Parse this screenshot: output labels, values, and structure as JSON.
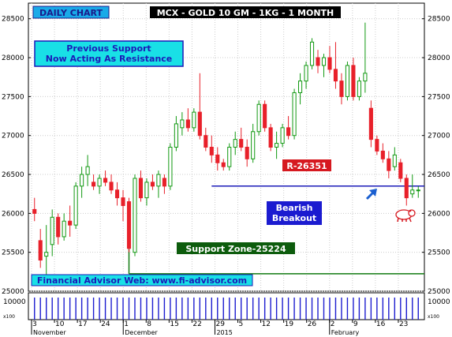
{
  "chart_data": {
    "type": "candlestick",
    "title": "MCX - GOLD 10 GM - 1KG - 1 MONTH",
    "timeframe_label": "DAILY CHART",
    "ylim": [
      25000,
      28700
    ],
    "y_ticks": [
      25000,
      25500,
      26000,
      26500,
      27000,
      27500,
      28000,
      28500
    ],
    "x_tick_labels": [
      "3",
      "10",
      "17",
      "24",
      "1",
      "8",
      "15",
      "22",
      "29",
      "5",
      "12",
      "19",
      "26",
      "2",
      "9",
      "16",
      "23"
    ],
    "month_labels": [
      {
        "label": "November",
        "after_tick": 0
      },
      {
        "label": "December",
        "after_tick": 4
      },
      {
        "label": "2015",
        "after_tick": 8
      },
      {
        "label": "February",
        "after_tick": 13
      }
    ],
    "candles": [
      {
        "o": 26050,
        "h": 26200,
        "l": 25900,
        "c": 26000
      },
      {
        "o": 25650,
        "h": 25800,
        "l": 25300,
        "c": 25400
      },
      {
        "o": 25450,
        "h": 25850,
        "l": 25150,
        "c": 25500
      },
      {
        "o": 25600,
        "h": 26050,
        "l": 25450,
        "c": 25950
      },
      {
        "o": 25950,
        "h": 26000,
        "l": 25600,
        "c": 25700
      },
      {
        "o": 25700,
        "h": 26000,
        "l": 25650,
        "c": 25900
      },
      {
        "o": 25900,
        "h": 26100,
        "l": 25700,
        "c": 25850
      },
      {
        "o": 25850,
        "h": 26400,
        "l": 25800,
        "c": 26350
      },
      {
        "o": 26350,
        "h": 26600,
        "l": 26200,
        "c": 26500
      },
      {
        "o": 26500,
        "h": 26750,
        "l": 26350,
        "c": 26600
      },
      {
        "o": 26400,
        "h": 26500,
        "l": 26300,
        "c": 26350
      },
      {
        "o": 26350,
        "h": 26500,
        "l": 26250,
        "c": 26450
      },
      {
        "o": 26450,
        "h": 26550,
        "l": 26350,
        "c": 26400
      },
      {
        "o": 26400,
        "h": 26500,
        "l": 26250,
        "c": 26300
      },
      {
        "o": 26300,
        "h": 26400,
        "l": 26100,
        "c": 26200
      },
      {
        "o": 26200,
        "h": 26300,
        "l": 25900,
        "c": 26100
      },
      {
        "o": 26150,
        "h": 26200,
        "l": 25500,
        "c": 25550
      },
      {
        "o": 25500,
        "h": 26500,
        "l": 25450,
        "c": 26450
      },
      {
        "o": 26450,
        "h": 26550,
        "l": 26150,
        "c": 26200
      },
      {
        "o": 26200,
        "h": 26450,
        "l": 26100,
        "c": 26400
      },
      {
        "o": 26400,
        "h": 26500,
        "l": 26300,
        "c": 26350
      },
      {
        "o": 26350,
        "h": 26550,
        "l": 26200,
        "c": 26500
      },
      {
        "o": 26450,
        "h": 26500,
        "l": 26250,
        "c": 26350
      },
      {
        "o": 26350,
        "h": 26900,
        "l": 26300,
        "c": 26850
      },
      {
        "o": 26850,
        "h": 27250,
        "l": 26800,
        "c": 27150
      },
      {
        "o": 27100,
        "h": 27300,
        "l": 27000,
        "c": 27200
      },
      {
        "o": 27200,
        "h": 27350,
        "l": 27050,
        "c": 27100
      },
      {
        "o": 27100,
        "h": 27350,
        "l": 27050,
        "c": 27300
      },
      {
        "o": 27300,
        "h": 27800,
        "l": 26950,
        "c": 27000
      },
      {
        "o": 27000,
        "h": 27100,
        "l": 26800,
        "c": 26850
      },
      {
        "o": 26850,
        "h": 27000,
        "l": 26650,
        "c": 26750
      },
      {
        "o": 26750,
        "h": 26850,
        "l": 26550,
        "c": 26650
      },
      {
        "o": 26650,
        "h": 26700,
        "l": 26550,
        "c": 26600
      },
      {
        "o": 26600,
        "h": 26900,
        "l": 26550,
        "c": 26850
      },
      {
        "o": 26850,
        "h": 27050,
        "l": 26750,
        "c": 26950
      },
      {
        "o": 26950,
        "h": 27100,
        "l": 26800,
        "c": 26850
      },
      {
        "o": 26850,
        "h": 26950,
        "l": 26600,
        "c": 26700
      },
      {
        "o": 26700,
        "h": 27150,
        "l": 26650,
        "c": 27050
      },
      {
        "o": 27050,
        "h": 27450,
        "l": 27000,
        "c": 27400
      },
      {
        "o": 27400,
        "h": 27450,
        "l": 27050,
        "c": 27100
      },
      {
        "o": 27100,
        "h": 27150,
        "l": 26800,
        "c": 26850
      },
      {
        "o": 26850,
        "h": 27050,
        "l": 26700,
        "c": 26900
      },
      {
        "o": 26900,
        "h": 27150,
        "l": 26850,
        "c": 27100
      },
      {
        "o": 27100,
        "h": 27250,
        "l": 26950,
        "c": 27000
      },
      {
        "o": 27000,
        "h": 27600,
        "l": 26950,
        "c": 27550
      },
      {
        "o": 27550,
        "h": 27800,
        "l": 27400,
        "c": 27700
      },
      {
        "o": 27700,
        "h": 27950,
        "l": 27600,
        "c": 27900
      },
      {
        "o": 27900,
        "h": 28250,
        "l": 27850,
        "c": 28200
      },
      {
        "o": 28000,
        "h": 28100,
        "l": 27800,
        "c": 27900
      },
      {
        "o": 27900,
        "h": 28050,
        "l": 27750,
        "c": 28000
      },
      {
        "o": 28000,
        "h": 28150,
        "l": 27800,
        "c": 27850
      },
      {
        "o": 27850,
        "h": 28200,
        "l": 27600,
        "c": 27700
      },
      {
        "o": 27700,
        "h": 27800,
        "l": 27400,
        "c": 27500
      },
      {
        "o": 27500,
        "h": 27950,
        "l": 27450,
        "c": 27900
      },
      {
        "o": 27900,
        "h": 28000,
        "l": 27450,
        "c": 27500
      },
      {
        "o": 27500,
        "h": 27750,
        "l": 27450,
        "c": 27700
      },
      {
        "o": 27700,
        "h": 28450,
        "l": 27550,
        "c": 27800
      },
      {
        "o": 27350,
        "h": 27450,
        "l": 26850,
        "c": 26950
      },
      {
        "o": 26950,
        "h": 27000,
        "l": 26750,
        "c": 26800
      },
      {
        "o": 26800,
        "h": 26900,
        "l": 26650,
        "c": 26700
      },
      {
        "o": 26700,
        "h": 26800,
        "l": 26450,
        "c": 26550
      },
      {
        "o": 26600,
        "h": 26850,
        "l": 26550,
        "c": 26750
      },
      {
        "o": 26650,
        "h": 26700,
        "l": 26400,
        "c": 26450
      },
      {
        "o": 26450,
        "h": 26500,
        "l": 26100,
        "c": 26200
      },
      {
        "o": 26250,
        "h": 26500,
        "l": 26200,
        "c": 26300
      },
      {
        "o": 26300,
        "h": 26350,
        "l": 26200,
        "c": 26300
      }
    ],
    "volume": {
      "axis_label": "10000",
      "scale_label": "x100",
      "bar_count": 66,
      "value_up_to": 10000
    },
    "resistance_line": {
      "value": 26351,
      "label": "R-26351",
      "start_candle": 30,
      "end_candle": 66
    },
    "support_line": {
      "value": 25224,
      "label": "Support Zone-25224",
      "start_candle": 16,
      "end_candle": 66
    },
    "annotations": {
      "prev_support": "Previous Support\nNow Acting As Resistance",
      "bearish": "Bearish\nBreakout",
      "website": "Financial Advisor Web: www.fi-advisor.com"
    },
    "colors": {
      "up": "#119911",
      "down": "#e8202a",
      "resistance": "#1b1bb8",
      "support": "#117a11",
      "volume": "#1c1ccf"
    },
    "grid": true
  }
}
